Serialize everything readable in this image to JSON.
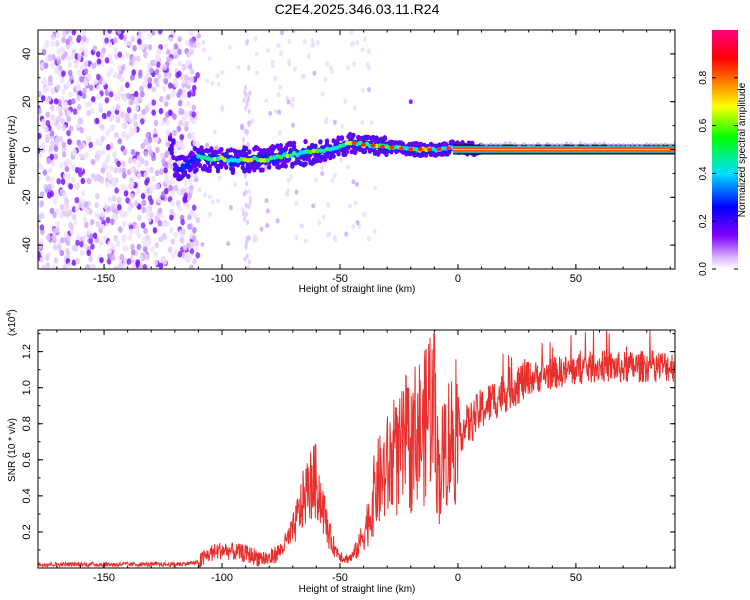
{
  "title": "C2E4.2025.346.03.11.R24",
  "colors": {
    "snr_line": "#e8302e",
    "axis": "#000000",
    "background": "#ffffff"
  },
  "chart_data": [
    {
      "type": "heatmap",
      "name": "spectrogram",
      "xlabel": "Height of straight line (km)",
      "ylabel": "Frequency (Hz)",
      "xlim": [
        -178,
        92
      ],
      "ylim": [
        -50,
        50
      ],
      "x_ticks": [
        -150,
        -100,
        -50,
        0,
        50
      ],
      "y_ticks": [
        -40,
        -20,
        0,
        20,
        40
      ],
      "x_tick_labels": [
        "-150",
        "-100",
        "-50",
        "0",
        "50"
      ],
      "y_tick_labels": [
        "-40",
        "-20",
        "0",
        "20",
        "40"
      ],
      "colorbar": {
        "label": "Normalized spectral amplitude",
        "range": [
          0,
          1
        ],
        "ticks": [
          0.0,
          0.2,
          0.4,
          0.6,
          0.8
        ],
        "tick_labels": [
          "0.0",
          "0.2",
          "0.4",
          "0.6",
          "0.8"
        ],
        "colormap": [
          "#ffffff",
          "#c080ff",
          "#8000ff",
          "#0000ff",
          "#00e0ff",
          "#00ff00",
          "#ffff00",
          "#ff8000",
          "#ff0000",
          "#ff0080"
        ]
      },
      "ridge_freq": [
        {
          "x": -120,
          "f": -8
        },
        {
          "x": -113,
          "f": -6
        },
        {
          "x": -110,
          "f": -3
        },
        {
          "x": -105,
          "f": -4
        },
        {
          "x": -100,
          "f": -4
        },
        {
          "x": -95,
          "f": -5
        },
        {
          "x": -90,
          "f": -4
        },
        {
          "x": -80,
          "f": -4
        },
        {
          "x": -70,
          "f": -2
        },
        {
          "x": -60,
          "f": -1
        },
        {
          "x": -50,
          "f": 1
        },
        {
          "x": -45,
          "f": 3
        },
        {
          "x": -40,
          "f": 2
        },
        {
          "x": -30,
          "f": 1
        },
        {
          "x": -20,
          "f": 0
        },
        {
          "x": -10,
          "f": 0
        },
        {
          "x": 0,
          "f": 1
        },
        {
          "x": 10,
          "f": 0
        },
        {
          "x": 92,
          "f": 0
        }
      ]
    },
    {
      "type": "line",
      "name": "snr",
      "xlabel": "Height of straight line (km)",
      "ylabel": "SNR (10 * v/v)",
      "y_multiplier": "(x10",
      "y_multiplier_exp": "4",
      "xlim": [
        -178,
        92
      ],
      "ylim": [
        0,
        1.32
      ],
      "x_ticks": [
        -150,
        -100,
        -50,
        0,
        50
      ],
      "y_ticks": [
        0.2,
        0.4,
        0.6,
        0.8,
        1.0,
        1.2
      ],
      "x_tick_labels": [
        "-150",
        "-100",
        "-50",
        "0",
        "50"
      ],
      "y_tick_labels": [
        "0.2",
        "0.4",
        "0.6",
        "0.8",
        "1.0",
        "1.2"
      ],
      "series": [
        {
          "name": "SNR",
          "x": [
            -178,
            -160,
            -140,
            -120,
            -110,
            -105,
            -100,
            -95,
            -90,
            -85,
            -80,
            -75,
            -70,
            -65,
            -62,
            -60,
            -57,
            -55,
            -52,
            -48,
            -45,
            -42,
            -40,
            -37,
            -35,
            -32,
            -30,
            -27,
            -25,
            -22,
            -20,
            -17,
            -15,
            -12,
            -10,
            -8,
            -5,
            0,
            5,
            10,
            15,
            20,
            25,
            30,
            40,
            50,
            60,
            70,
            80,
            92
          ],
          "values": [
            0.02,
            0.02,
            0.02,
            0.02,
            0.03,
            0.08,
            0.1,
            0.09,
            0.08,
            0.06,
            0.05,
            0.1,
            0.2,
            0.4,
            0.47,
            0.48,
            0.32,
            0.2,
            0.1,
            0.05,
            0.06,
            0.12,
            0.2,
            0.3,
            0.45,
            0.5,
            0.55,
            0.6,
            0.6,
            0.7,
            0.65,
            0.8,
            0.7,
            0.95,
            0.8,
            0.5,
            0.7,
            0.75,
            0.8,
            0.88,
            0.93,
            0.98,
            1.02,
            1.05,
            1.08,
            1.1,
            1.12,
            1.11,
            1.12,
            1.12
          ]
        }
      ]
    }
  ]
}
